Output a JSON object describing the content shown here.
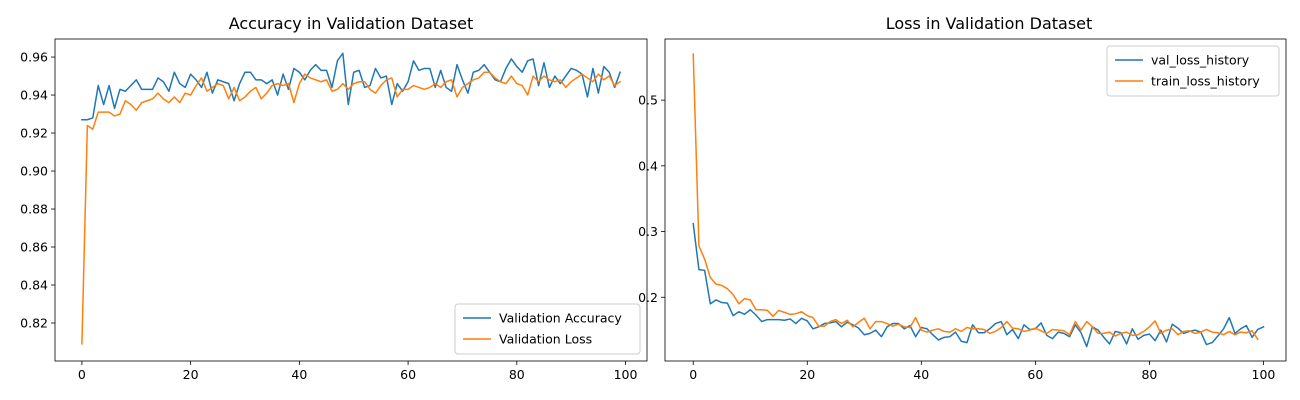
{
  "colors": {
    "blue": "#1f77b4",
    "orange": "#ff7f0e"
  },
  "chart_data": [
    {
      "type": "line",
      "title": "Accuracy in Validation Dataset",
      "xlabel": "",
      "ylabel": "",
      "xlim": [
        -4.95,
        103.95
      ],
      "ylim": [
        0.8,
        0.9695
      ],
      "xticks": [
        0,
        20,
        40,
        60,
        80,
        100
      ],
      "yticks": [
        0.82,
        0.84,
        0.86,
        0.88,
        0.9,
        0.92,
        0.94,
        0.96
      ],
      "ytick_labels": [
        "0.82",
        "0.84",
        "0.86",
        "0.88",
        "0.90",
        "0.92",
        "0.94",
        "0.96"
      ],
      "grid": false,
      "legend_position": "lower right",
      "series": [
        {
          "name": "Validation Accuracy",
          "color": "#1f77b4",
          "x_start": 0,
          "x_step": 1,
          "values": [
            0.927,
            0.927,
            0.928,
            0.945,
            0.935,
            0.945,
            0.933,
            0.943,
            0.942,
            0.945,
            0.948,
            0.943,
            0.943,
            0.943,
            0.949,
            0.947,
            0.942,
            0.952,
            0.946,
            0.944,
            0.951,
            0.948,
            0.944,
            0.952,
            0.941,
            0.948,
            0.947,
            0.946,
            0.937,
            0.946,
            0.952,
            0.952,
            0.948,
            0.948,
            0.946,
            0.948,
            0.94,
            0.951,
            0.943,
            0.954,
            0.952,
            0.948,
            0.953,
            0.956,
            0.953,
            0.953,
            0.944,
            0.958,
            0.962,
            0.935,
            0.952,
            0.953,
            0.944,
            0.945,
            0.954,
            0.949,
            0.95,
            0.935,
            0.946,
            0.942,
            0.947,
            0.958,
            0.953,
            0.954,
            0.954,
            0.944,
            0.953,
            0.944,
            0.942,
            0.956,
            0.948,
            0.941,
            0.952,
            0.953,
            0.956,
            0.952,
            0.948,
            0.947,
            0.954,
            0.959,
            0.955,
            0.952,
            0.958,
            0.959,
            0.945,
            0.957,
            0.944,
            0.95,
            0.946,
            0.95,
            0.954,
            0.953,
            0.951,
            0.939,
            0.954,
            0.941,
            0.955,
            0.952,
            0.944,
            0.952
          ]
        },
        {
          "name": "Validation Loss",
          "color": "#ff7f0e",
          "x_start": 0,
          "x_step": 1,
          "values": [
            0.809,
            0.924,
            0.922,
            0.931,
            0.931,
            0.931,
            0.929,
            0.93,
            0.937,
            0.935,
            0.932,
            0.936,
            0.937,
            0.938,
            0.941,
            0.938,
            0.936,
            0.939,
            0.936,
            0.941,
            0.94,
            0.945,
            0.949,
            0.942,
            0.944,
            0.946,
            0.945,
            0.938,
            0.944,
            0.937,
            0.939,
            0.942,
            0.944,
            0.938,
            0.941,
            0.945,
            0.946,
            0.945,
            0.946,
            0.936,
            0.946,
            0.951,
            0.949,
            0.948,
            0.947,
            0.948,
            0.942,
            0.943,
            0.946,
            0.943,
            0.946,
            0.947,
            0.947,
            0.943,
            0.941,
            0.945,
            0.948,
            0.949,
            0.939,
            0.943,
            0.943,
            0.945,
            0.944,
            0.943,
            0.944,
            0.946,
            0.944,
            0.947,
            0.948,
            0.939,
            0.944,
            0.946,
            0.948,
            0.949,
            0.952,
            0.952,
            0.949,
            0.947,
            0.946,
            0.95,
            0.946,
            0.945,
            0.94,
            0.95,
            0.947,
            0.95,
            0.948,
            0.947,
            0.948,
            0.944,
            0.947,
            0.949,
            0.951,
            0.949,
            0.947,
            0.951,
            0.948,
            0.95,
            0.945,
            0.947
          ]
        }
      ]
    },
    {
      "type": "line",
      "title": "Loss in Validation Dataset",
      "xlabel": "",
      "ylabel": "",
      "xlim": [
        -4.95,
        103.95
      ],
      "ylim": [
        0.103,
        0.593
      ],
      "xticks": [
        0,
        20,
        40,
        60,
        80,
        100
      ],
      "yticks": [
        0.2,
        0.3,
        0.4,
        0.5
      ],
      "ytick_labels": [
        "0.2",
        "0.3",
        "0.4",
        "0.5"
      ],
      "grid": false,
      "legend_position": "upper right",
      "series": [
        {
          "name": "val_loss_history",
          "color": "#1f77b4",
          "x_start": 0,
          "x_step": 1,
          "values": [
            0.312,
            0.242,
            0.241,
            0.19,
            0.196,
            0.192,
            0.191,
            0.172,
            0.178,
            0.174,
            0.181,
            0.173,
            0.163,
            0.166,
            0.166,
            0.166,
            0.165,
            0.167,
            0.16,
            0.168,
            0.164,
            0.152,
            0.155,
            0.16,
            0.161,
            0.163,
            0.155,
            0.162,
            0.158,
            0.153,
            0.143,
            0.145,
            0.15,
            0.14,
            0.155,
            0.16,
            0.16,
            0.152,
            0.157,
            0.14,
            0.154,
            0.152,
            0.143,
            0.135,
            0.139,
            0.14,
            0.147,
            0.133,
            0.131,
            0.158,
            0.146,
            0.146,
            0.152,
            0.16,
            0.163,
            0.143,
            0.151,
            0.137,
            0.158,
            0.151,
            0.152,
            0.161,
            0.142,
            0.137,
            0.147,
            0.145,
            0.14,
            0.158,
            0.146,
            0.125,
            0.155,
            0.15,
            0.139,
            0.129,
            0.148,
            0.146,
            0.129,
            0.152,
            0.136,
            0.142,
            0.144,
            0.134,
            0.15,
            0.132,
            0.159,
            0.153,
            0.145,
            0.148,
            0.15,
            0.147,
            0.128,
            0.131,
            0.141,
            0.152,
            0.169,
            0.145,
            0.152,
            0.157,
            0.139,
            0.151,
            0.155
          ]
        },
        {
          "name": "train_loss_history",
          "color": "#ff7f0e",
          "x_start": 0,
          "x_step": 1,
          "values": [
            0.57,
            0.278,
            0.258,
            0.23,
            0.22,
            0.218,
            0.213,
            0.204,
            0.19,
            0.198,
            0.196,
            0.181,
            0.181,
            0.18,
            0.171,
            0.18,
            0.177,
            0.174,
            0.175,
            0.178,
            0.172,
            0.169,
            0.156,
            0.156,
            0.163,
            0.166,
            0.16,
            0.165,
            0.155,
            0.162,
            0.168,
            0.152,
            0.163,
            0.163,
            0.16,
            0.156,
            0.159,
            0.155,
            0.154,
            0.169,
            0.15,
            0.147,
            0.15,
            0.152,
            0.148,
            0.147,
            0.152,
            0.148,
            0.154,
            0.152,
            0.152,
            0.151,
            0.145,
            0.148,
            0.154,
            0.163,
            0.153,
            0.152,
            0.148,
            0.15,
            0.153,
            0.149,
            0.145,
            0.151,
            0.15,
            0.149,
            0.143,
            0.163,
            0.15,
            0.163,
            0.155,
            0.145,
            0.145,
            0.147,
            0.141,
            0.145,
            0.147,
            0.142,
            0.143,
            0.148,
            0.155,
            0.164,
            0.145,
            0.15,
            0.152,
            0.143,
            0.148,
            0.149,
            0.145,
            0.147,
            0.151,
            0.147,
            0.146,
            0.143,
            0.148,
            0.143,
            0.147,
            0.146,
            0.149,
            0.136
          ]
        }
      ]
    }
  ]
}
